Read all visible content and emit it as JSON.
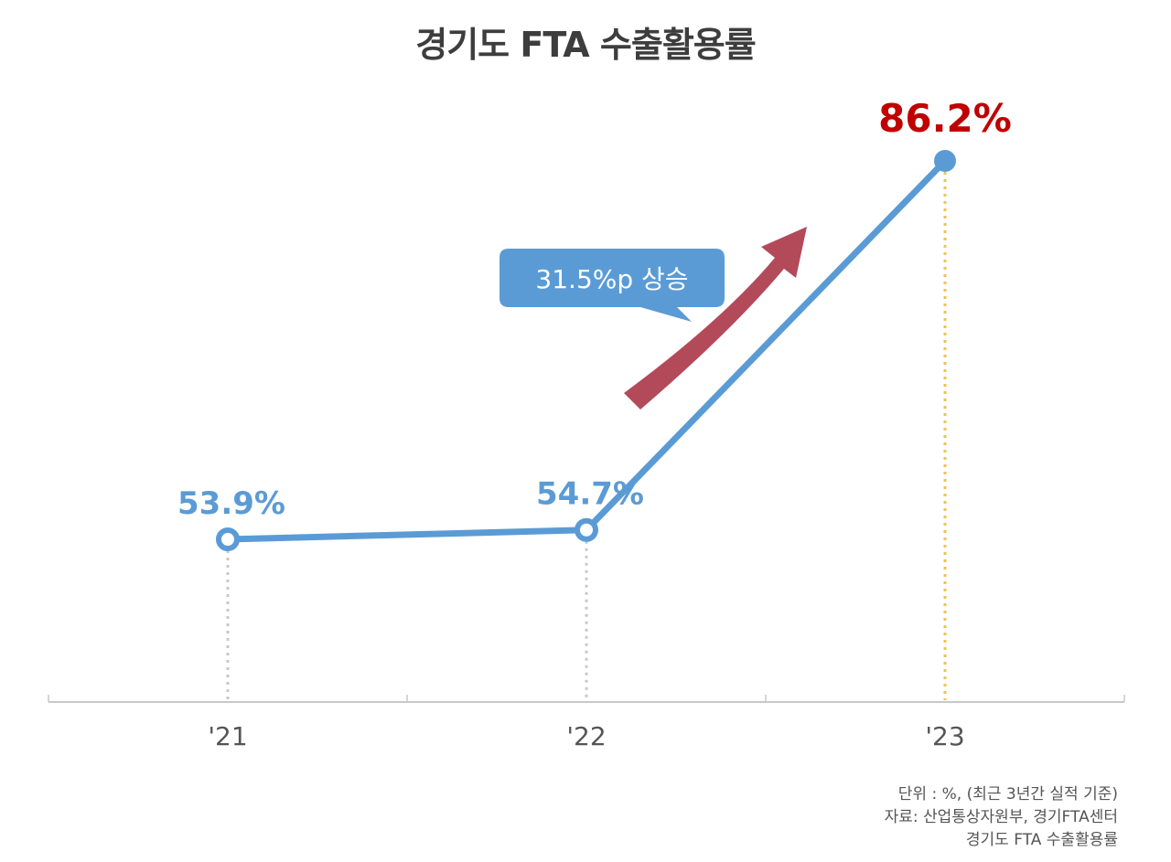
{
  "chart_data": {
    "type": "line",
    "title": "경기도 FTA 수출활용률",
    "categories": [
      "'21",
      "'22",
      "'23"
    ],
    "series": [
      {
        "values": [
          53.9,
          54.7,
          86.2
        ]
      }
    ],
    "data_labels": [
      "53.9%",
      "54.7%",
      "86.2%"
    ],
    "annotation": "31.5%p 상승",
    "ylim": [
      40,
      95
    ],
    "grid": false,
    "colors": {
      "line": "#5b9bd5",
      "highlight_label": "#c00000",
      "label": "#5b9bd5",
      "arrow": "#b34a5a",
      "callout": "#5b9bd5",
      "guide": "#c8c8c8",
      "guide_highlight": "#f2c14e",
      "axis": "#c8c8c8",
      "tick_label": "#555555"
    }
  },
  "footnotes": {
    "unit": "단위 : %, (최근 3년간 실적 기준)",
    "source": "자료: 산업통상자원부, 경기FTA센터",
    "name": "경기도 FTA 수출활용률"
  }
}
